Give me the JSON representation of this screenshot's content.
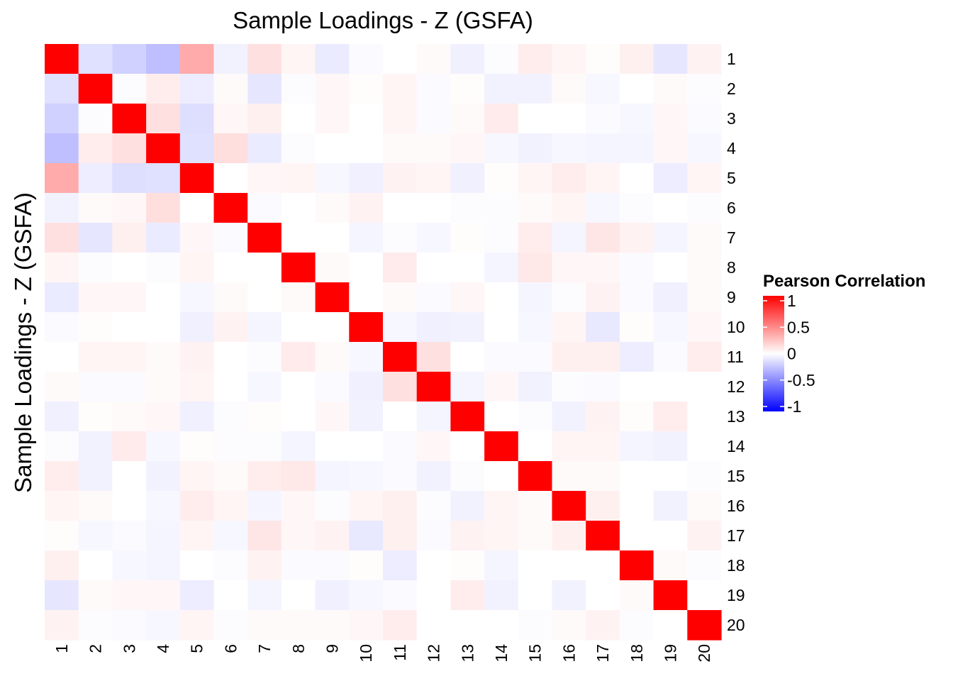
{
  "chart_data": {
    "type": "heatmap",
    "title": "Sample Loadings - Z (GSFA)",
    "xlabel": "",
    "ylabel": "Sample Loadings - Z (GSFA)",
    "x_categories": [
      "1",
      "2",
      "3",
      "4",
      "5",
      "6",
      "7",
      "8",
      "9",
      "10",
      "11",
      "12",
      "13",
      "14",
      "15",
      "16",
      "17",
      "18",
      "19",
      "20"
    ],
    "y_categories": [
      "1",
      "2",
      "3",
      "4",
      "5",
      "6",
      "7",
      "8",
      "9",
      "10",
      "11",
      "12",
      "13",
      "14",
      "15",
      "16",
      "17",
      "18",
      "19",
      "20"
    ],
    "values": [
      [
        1,
        -0.12,
        -0.18,
        -0.25,
        0.33,
        -0.05,
        0.12,
        0.04,
        -0.08,
        -0.02,
        0,
        0.02,
        -0.06,
        -0.01,
        0.07,
        0.04,
        0.01,
        0.06,
        -0.1,
        0.05
      ],
      [
        -0.12,
        1,
        -0.01,
        0.07,
        -0.07,
        0.02,
        -0.1,
        -0.01,
        0.03,
        0.01,
        0.04,
        -0.02,
        0.01,
        -0.05,
        -0.05,
        0.02,
        -0.03,
        0,
        0.02,
        -0.01
      ],
      [
        -0.18,
        -0.01,
        1,
        0.12,
        -0.13,
        0.03,
        0.06,
        0,
        0.03,
        0,
        0.04,
        -0.02,
        0.02,
        0.08,
        0,
        0,
        -0.02,
        -0.03,
        0.03,
        -0.02
      ],
      [
        -0.25,
        0.07,
        0.12,
        1,
        -0.12,
        0.13,
        -0.08,
        -0.01,
        0,
        0,
        0.02,
        0.02,
        0.03,
        -0.03,
        -0.05,
        -0.03,
        -0.04,
        -0.04,
        0.03,
        -0.03
      ],
      [
        0.33,
        -0.07,
        -0.13,
        -0.12,
        1,
        0,
        0.03,
        0.04,
        -0.03,
        -0.06,
        0.05,
        0.04,
        -0.06,
        0.01,
        0.04,
        0.07,
        0.04,
        0,
        -0.07,
        0.04
      ],
      [
        -0.05,
        0.02,
        0.03,
        0.13,
        0,
        1,
        -0.02,
        0,
        0.02,
        0.05,
        0,
        0,
        -0.01,
        -0.01,
        0.02,
        0.04,
        -0.03,
        -0.01,
        0,
        -0.01
      ],
      [
        0.12,
        -0.1,
        0.06,
        -0.08,
        0.03,
        -0.02,
        1,
        0,
        0,
        -0.04,
        -0.01,
        -0.03,
        0.01,
        -0.01,
        0.07,
        -0.04,
        0.1,
        0.05,
        -0.04,
        0.02
      ],
      [
        0.04,
        -0.01,
        0,
        -0.01,
        0.04,
        0,
        0,
        1,
        0.02,
        0,
        0.08,
        0,
        0,
        -0.04,
        0.09,
        0.03,
        0.03,
        -0.02,
        0,
        0.02
      ],
      [
        -0.08,
        0.03,
        0.03,
        0,
        -0.03,
        0.02,
        0,
        0.02,
        1,
        0,
        0.02,
        -0.02,
        0.03,
        0,
        -0.04,
        -0.01,
        0.05,
        -0.02,
        -0.06,
        0.02
      ],
      [
        -0.02,
        0.01,
        0,
        0,
        -0.06,
        0.05,
        -0.04,
        0,
        0,
        1,
        -0.03,
        -0.06,
        -0.05,
        0,
        -0.03,
        0.04,
        -0.09,
        0.01,
        -0.03,
        0.03
      ],
      [
        0,
        0.04,
        0.04,
        0.02,
        0.05,
        0,
        -0.01,
        0.08,
        0.02,
        -0.03,
        1,
        0.12,
        0,
        -0.02,
        -0.02,
        0.06,
        0.06,
        -0.07,
        -0.02,
        0.07
      ],
      [
        0.02,
        -0.02,
        -0.02,
        0.02,
        0.04,
        0,
        -0.03,
        0,
        -0.02,
        -0.06,
        0.12,
        1,
        -0.04,
        0.03,
        -0.05,
        -0.01,
        -0.02,
        0,
        0,
        0
      ],
      [
        -0.06,
        0.01,
        0.02,
        0.03,
        -0.06,
        -0.01,
        0.01,
        0,
        0.03,
        -0.05,
        0,
        -0.04,
        1,
        0,
        -0.01,
        -0.05,
        0.05,
        0.01,
        0.07,
        0
      ],
      [
        -0.01,
        -0.05,
        0.08,
        -0.03,
        0.01,
        -0.01,
        -0.01,
        -0.04,
        0,
        0,
        -0.02,
        0.03,
        0,
        1,
        0,
        0.04,
        0.04,
        -0.04,
        -0.05,
        0
      ],
      [
        0.07,
        -0.05,
        0,
        -0.05,
        0.04,
        0.02,
        0.07,
        0.09,
        -0.04,
        -0.03,
        -0.02,
        -0.05,
        -0.01,
        0,
        1,
        0.02,
        0.02,
        0,
        0,
        -0.01
      ],
      [
        0.04,
        0.02,
        0,
        -0.03,
        0.07,
        0.04,
        -0.04,
        0.03,
        -0.01,
        0.04,
        0.06,
        -0.01,
        -0.05,
        0.04,
        0.02,
        1,
        0.06,
        0,
        -0.05,
        0.02
      ],
      [
        0.01,
        -0.03,
        -0.02,
        -0.04,
        0.04,
        -0.03,
        0.1,
        0.03,
        0.05,
        -0.09,
        0.06,
        -0.02,
        0.05,
        0.04,
        0.02,
        0.06,
        1,
        0,
        0,
        0.05
      ],
      [
        0.06,
        0,
        -0.03,
        -0.04,
        0,
        -0.01,
        0.05,
        -0.02,
        -0.02,
        0.01,
        -0.07,
        0,
        0.01,
        -0.04,
        0,
        0,
        0,
        1,
        0.02,
        -0.01
      ],
      [
        -0.1,
        0.02,
        0.03,
        0.03,
        -0.07,
        0,
        -0.04,
        0,
        -0.06,
        -0.03,
        -0.02,
        0,
        0.07,
        -0.05,
        0,
        -0.05,
        0,
        0.02,
        1,
        0
      ],
      [
        0.05,
        -0.01,
        -0.02,
        -0.03,
        0.04,
        -0.01,
        0.02,
        0.02,
        0.02,
        0.03,
        0.07,
        0,
        0,
        0,
        -0.01,
        0.02,
        0.05,
        -0.01,
        0,
        1
      ]
    ],
    "value_range": [
      -1,
      1
    ],
    "legend": {
      "title": "Pearson Correlation",
      "position": "right",
      "ticks": [
        1,
        0.5,
        0,
        -0.5,
        -1
      ],
      "tick_labels": [
        "1",
        "0.5",
        "0",
        "-0.5",
        "-1"
      ]
    },
    "colors": {
      "low": "#0000ff",
      "mid": "#ffffff",
      "high": "#ff0000"
    },
    "grid": false
  }
}
